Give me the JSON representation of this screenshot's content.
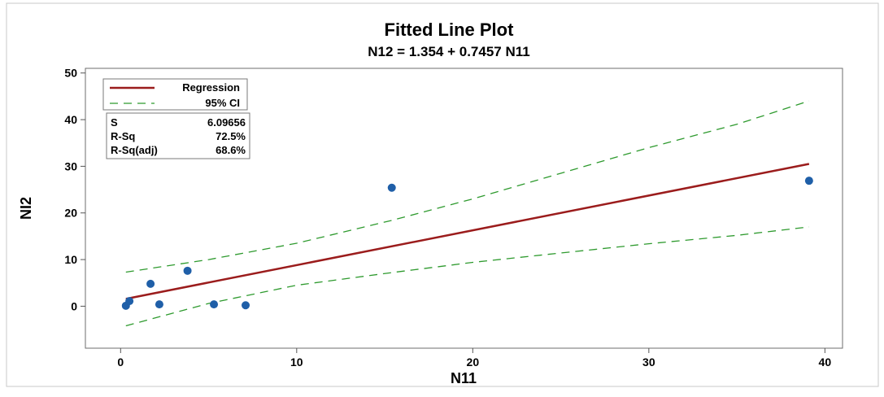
{
  "chart_data": {
    "type": "scatter",
    "title": "Fitted Line Plot",
    "subtitle": "N12 = 1.354 + 0.7457 N11",
    "xlabel": "N11",
    "ylabel": "NI2",
    "xlim": [
      -2,
      41
    ],
    "ylim": [
      -9,
      51
    ],
    "xticks": [
      0,
      10,
      20,
      30,
      40
    ],
    "yticks": [
      0,
      10,
      20,
      30,
      40,
      50
    ],
    "grid": false,
    "points": [
      {
        "x": 0.3,
        "y": 0.1
      },
      {
        "x": 0.5,
        "y": 1.1
      },
      {
        "x": 1.7,
        "y": 4.8
      },
      {
        "x": 2.2,
        "y": 0.4
      },
      {
        "x": 3.8,
        "y": 7.6
      },
      {
        "x": 5.3,
        "y": 0.4
      },
      {
        "x": 7.1,
        "y": 0.2
      },
      {
        "x": 15.4,
        "y": 25.4
      },
      {
        "x": 39.1,
        "y": 26.9
      }
    ],
    "regression": {
      "intercept": 1.354,
      "slope": 0.7457,
      "x_range": [
        0.3,
        39.1
      ]
    },
    "ci": {
      "upper": [
        [
          0.3,
          7.3
        ],
        [
          5,
          10
        ],
        [
          10,
          13.5
        ],
        [
          15.4,
          18.4
        ],
        [
          20,
          23
        ],
        [
          25,
          28.5
        ],
        [
          30,
          34
        ],
        [
          35,
          39
        ],
        [
          39.1,
          44
        ]
      ],
      "lower": [
        [
          0.3,
          -4.2
        ],
        [
          5,
          0.6
        ],
        [
          10,
          4.5
        ],
        [
          15.4,
          7.2
        ],
        [
          20,
          9.4
        ],
        [
          25,
          11.4
        ],
        [
          30,
          13.4
        ],
        [
          35,
          15.2
        ],
        [
          39.1,
          17
        ]
      ]
    },
    "legend": {
      "position": "top-left",
      "entries": [
        {
          "label": "Regression",
          "color": "#9b1c1c",
          "style": "solid"
        },
        {
          "label": "95% CI",
          "color": "#2e9a2e",
          "style": "dashed"
        }
      ]
    },
    "stats": [
      {
        "label": "S",
        "value": "6.09656"
      },
      {
        "label": "R-Sq",
        "value": "72.5%"
      },
      {
        "label": "R-Sq(adj)",
        "value": "68.6%"
      }
    ],
    "colors": {
      "points": "#1f5fa8",
      "regression": "#9b1c1c",
      "ci": "#2e9a2e",
      "frame": "#c8c8c8"
    }
  }
}
